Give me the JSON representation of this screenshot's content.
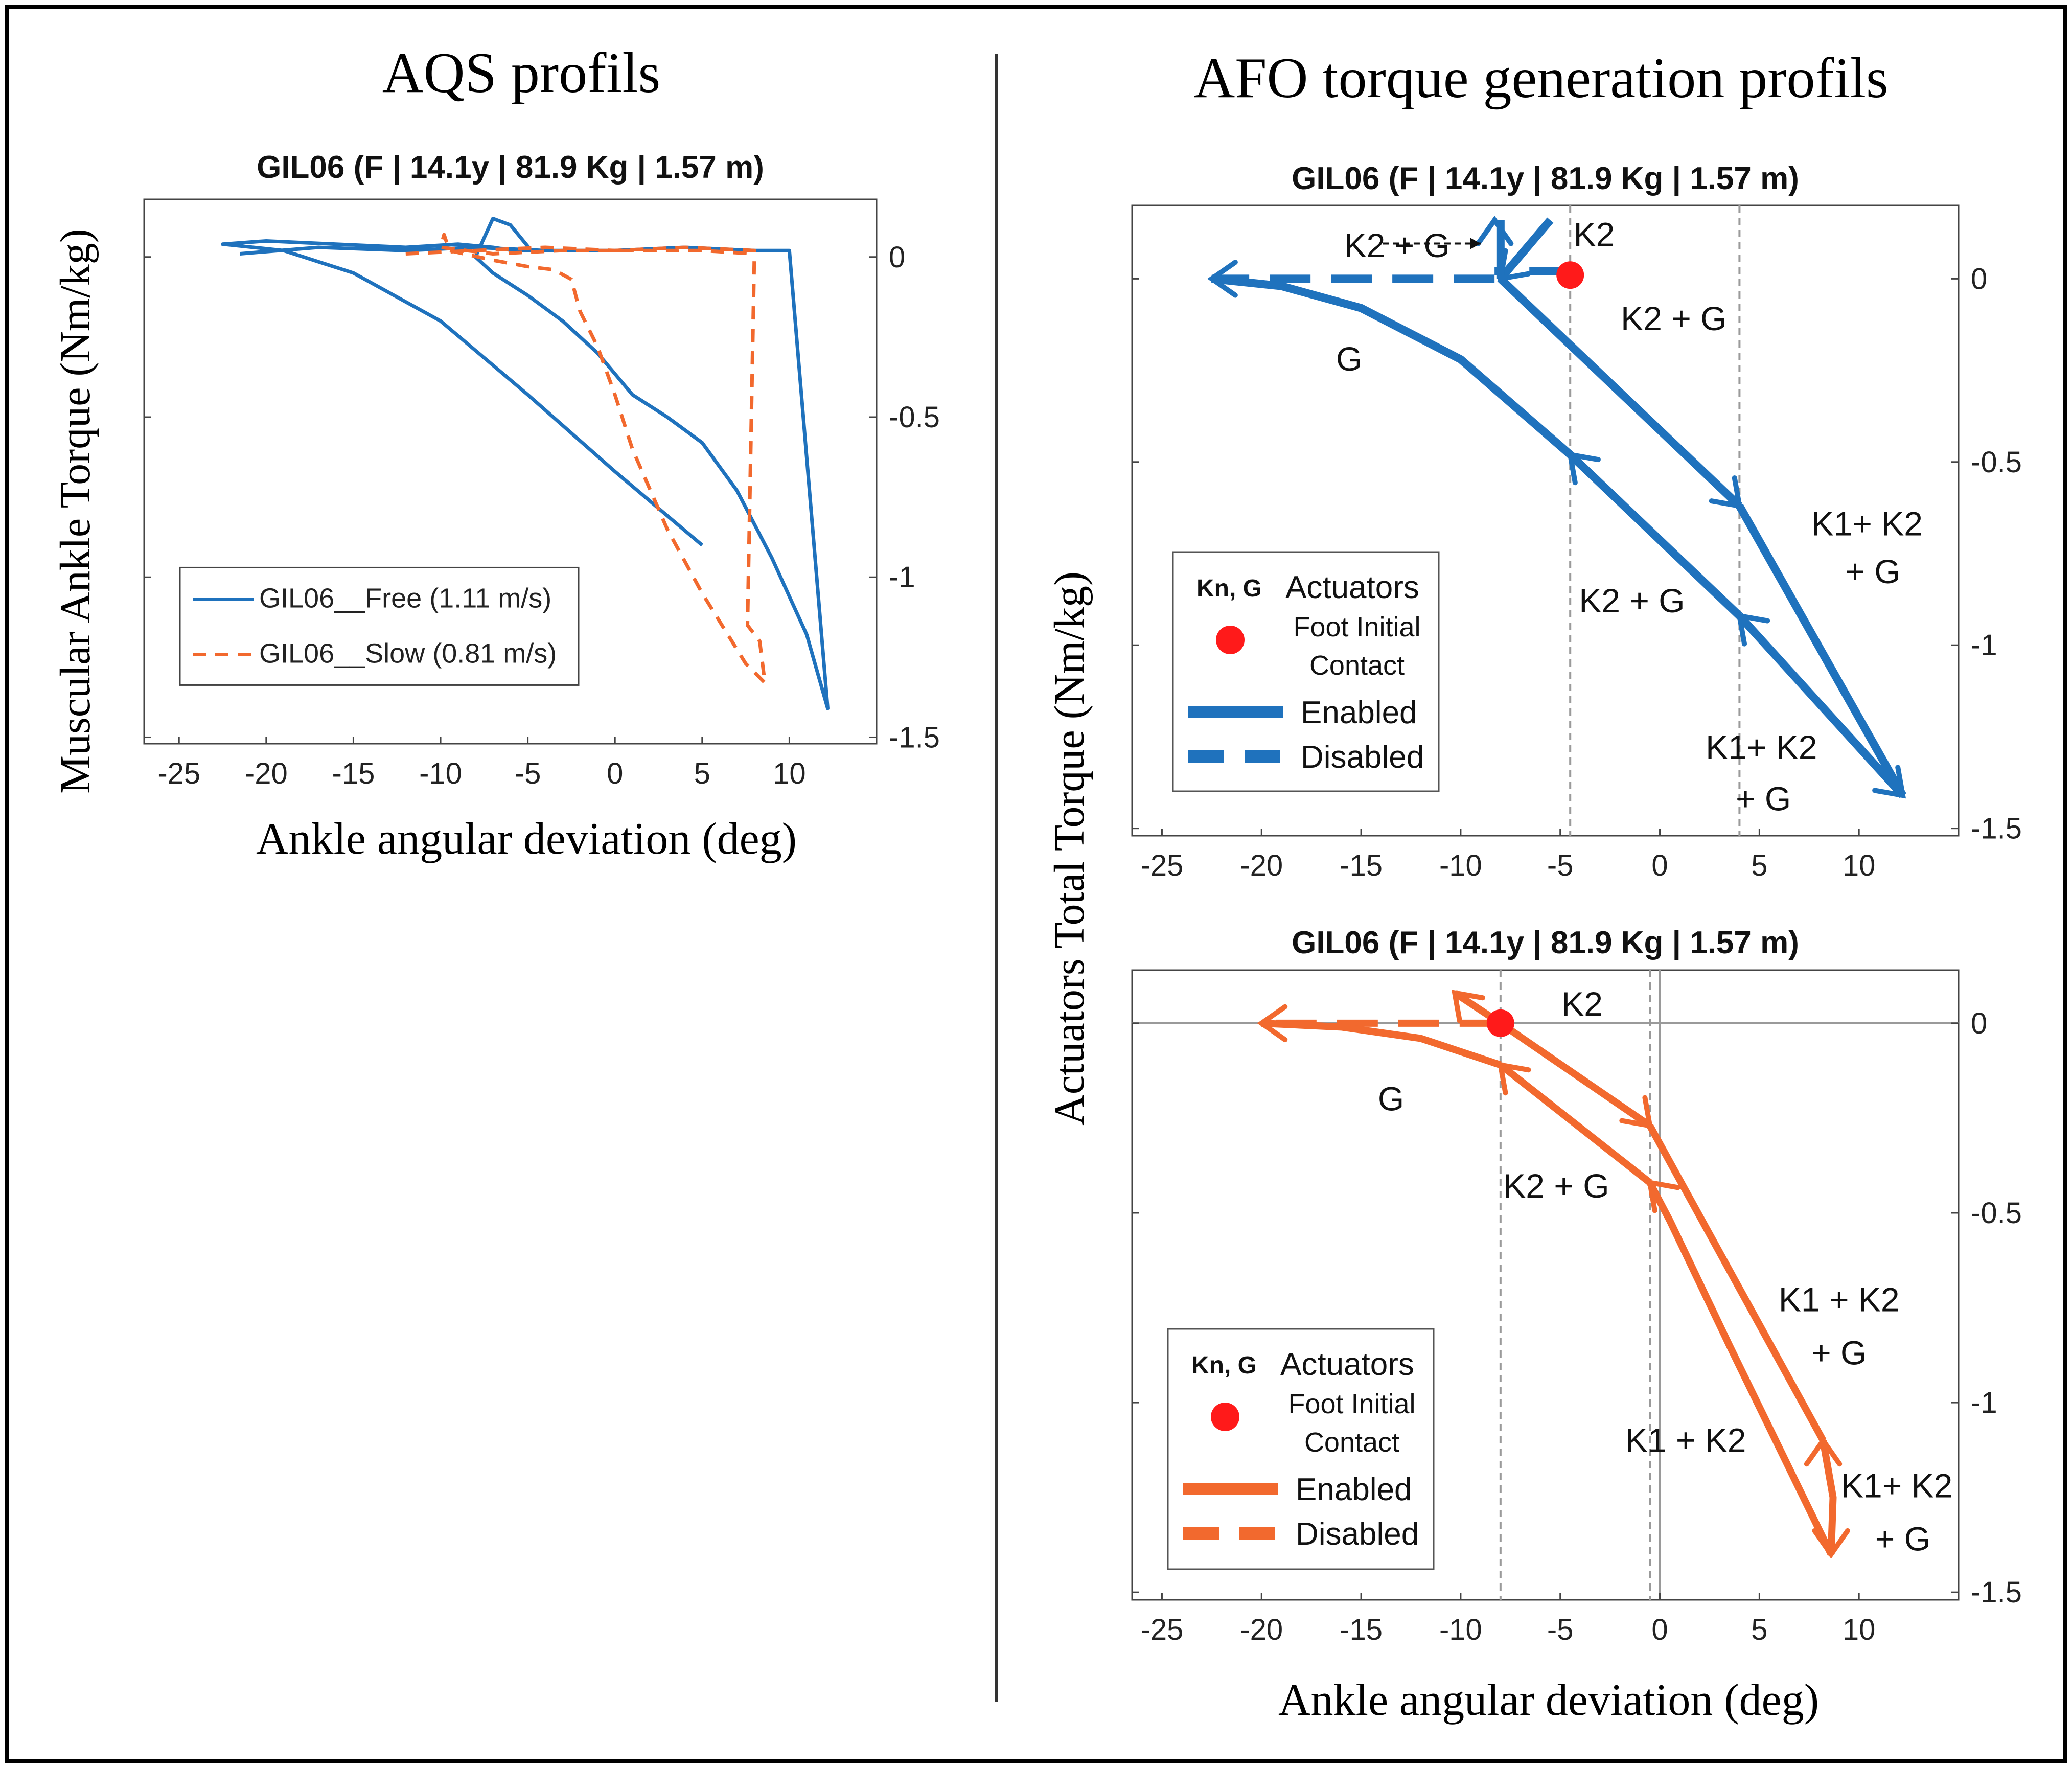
{
  "figure": {
    "left_heading": "AQS profils",
    "right_heading": "AFO torque generation profils",
    "left_ylabel": "Muscular Ankle Torque (Nm/kg)",
    "right_ylabel": "Actuators Total Torque (Nm/kg)",
    "xlabel": "Ankle angular deviation (deg)",
    "colors": {
      "blue": "#1f72bd",
      "orange": "#f2692e",
      "red": "#ff1a1a",
      "grey": "#9a9a9a",
      "border": "#000000"
    }
  },
  "chart_data": [
    {
      "id": "aqs",
      "type": "line",
      "title": "GIL06 (F | 14.1y | 81.9 Kg | 1.57 m)",
      "xlabel": "Ankle angular deviation (deg)",
      "ylabel": "Muscular Ankle Torque (Nm/kg)",
      "xlim": [
        -27,
        15
      ],
      "ylim": [
        -1.52,
        0.18
      ],
      "xticks": [
        -25,
        -20,
        -15,
        -10,
        -5,
        0,
        5,
        10
      ],
      "xtick_labels": [
        "-25",
        "-20",
        "-15",
        "-10",
        "-5",
        "0",
        "5",
        "10"
      ],
      "yticks": [
        0,
        -0.5,
        -1,
        -1.5
      ],
      "ytick_labels": [
        "0",
        "-0.5",
        "-1",
        "-1.5"
      ],
      "legend_position": "bottom-left",
      "series": [
        {
          "name": "GIL06__Free (1.11 m/s)",
          "color": "#1f72bd",
          "style": "solid",
          "x": [
            -21.5,
            -17,
            -12,
            -8,
            -4,
            0,
            4,
            8,
            10,
            12.2,
            11,
            9,
            7,
            5,
            3,
            1,
            -1,
            -3,
            -5,
            -7,
            -8,
            -7,
            -6,
            -4.8,
            -5.8,
            -7,
            -9,
            -12,
            -16,
            -20,
            -22.5,
            -19,
            -15,
            -10,
            -5,
            0,
            5
          ],
          "y": [
            0.01,
            0.03,
            0.02,
            0.03,
            0.02,
            0.02,
            0.03,
            0.02,
            0.02,
            -1.41,
            -1.18,
            -0.94,
            -0.73,
            -0.58,
            -0.5,
            -0.43,
            -0.3,
            -0.2,
            -0.12,
            -0.05,
            0.0,
            0.12,
            0.1,
            0.02,
            0.02,
            0.03,
            0.04,
            0.03,
            0.04,
            0.05,
            0.04,
            0.02,
            -0.05,
            -0.2,
            -0.43,
            -0.67,
            -0.9
          ]
        },
        {
          "name": "GIL06__Slow (0.81 m/s)",
          "color": "#f2692e",
          "style": "dashed",
          "x": [
            -12,
            -8,
            -4,
            0,
            4,
            8,
            7.6,
            8.3,
            8.6,
            7.5,
            5,
            3,
            1,
            0,
            -1,
            -2,
            -2.5,
            -3.5,
            -5,
            -7,
            -9.5,
            -9.8,
            -10,
            -7,
            -3,
            1,
            5,
            8
          ],
          "y": [
            0.01,
            0.02,
            0.03,
            0.02,
            0.03,
            0.02,
            -1.15,
            -1.2,
            -1.33,
            -1.27,
            -1.05,
            -0.85,
            -0.6,
            -0.43,
            -0.28,
            -0.17,
            -0.07,
            -0.04,
            -0.03,
            -0.01,
            0.02,
            0.07,
            0.03,
            0.01,
            0.02,
            0.02,
            0.02,
            0.01
          ]
        }
      ]
    },
    {
      "id": "afo-blue",
      "type": "line",
      "title": "GIL06 (F | 14.1y | 81.9 Kg | 1.57 m)",
      "xlabel": "",
      "ylabel": "Actuators Total Torque (Nm/kg)",
      "xlim": [
        -26.5,
        15
      ],
      "ylim": [
        -1.52,
        0.2
      ],
      "xticks": [
        -25,
        -20,
        -15,
        -10,
        -5,
        0,
        5,
        10
      ],
      "xtick_labels": [
        "-25",
        "-20",
        "-15",
        "-10",
        "-5",
        "0",
        "5",
        "10"
      ],
      "yticks": [
        0,
        -0.5,
        -1,
        -1.5
      ],
      "ytick_labels": [
        "0",
        "-0.5",
        "-1",
        "-1.5"
      ],
      "vlines": [
        -4.5,
        4
      ],
      "foot_contact": {
        "x": -4.5,
        "y": 0.01
      },
      "segments": [
        {
          "x": [
            -4.5,
            -8.3
          ],
          "y": [
            0.02,
            0.02
          ],
          "style": "dashed"
        },
        {
          "x": [
            -8.3,
            -22.5
          ],
          "y": [
            0.0,
            0.0
          ],
          "style": "dashed"
        },
        {
          "x": [
            -8,
            -5.5
          ],
          "y": [
            0.0,
            0.16
          ],
          "style": "solid"
        },
        {
          "x": [
            -8,
            -8
          ],
          "y": [
            0.0,
            0.16
          ],
          "style": "solid"
        },
        {
          "x": [
            -8,
            4
          ],
          "y": [
            0.0,
            -0.62
          ],
          "style": "solid"
        },
        {
          "x": [
            4,
            12.2
          ],
          "y": [
            -0.62,
            -1.41
          ],
          "style": "solid"
        },
        {
          "x": [
            12.2,
            4
          ],
          "y": [
            -1.41,
            -0.92
          ],
          "style": "solid"
        },
        {
          "x": [
            4,
            -4.5
          ],
          "y": [
            -0.92,
            -0.48
          ],
          "style": "solid"
        },
        {
          "x": [
            -4.5,
            -10,
            -15,
            -19,
            -22.5
          ],
          "y": [
            -0.48,
            -0.22,
            -0.08,
            -0.02,
            0.0
          ],
          "style": "solid"
        }
      ],
      "arrows": [
        {
          "x": -22.5,
          "y": 0.0,
          "dir": "left"
        },
        {
          "x": -8.3,
          "y": 0.16,
          "dir": "up"
        },
        {
          "x": -8.0,
          "y": 0.0,
          "dir": "down-left"
        },
        {
          "x": 4.0,
          "y": -0.62,
          "dir": "down-right"
        },
        {
          "x": 12.2,
          "y": -1.41,
          "dir": "down-right"
        },
        {
          "x": 4.0,
          "y": -0.92,
          "dir": "up-left"
        },
        {
          "x": -4.5,
          "y": -0.48,
          "dir": "up-left"
        }
      ],
      "annotations": [
        {
          "text": "K2",
          "x": -3.3,
          "y": 0.12
        },
        {
          "text": "K2 + G",
          "x": -13.2,
          "y": 0.09
        },
        {
          "text": "K2 + G",
          "x": 0.7,
          "y": -0.11
        },
        {
          "text": "G",
          "x": -15.6,
          "y": -0.22
        },
        {
          "text": "K1+ K2",
          "x": 10.4,
          "y": -0.67
        },
        {
          "text": "+ G",
          "x": 10.7,
          "y": -0.8
        },
        {
          "text": "K2 + G",
          "x": -1.4,
          "y": -0.88
        },
        {
          "text": "K1+ K2",
          "x": 5.1,
          "y": -1.28
        },
        {
          "text": "+ G",
          "x": 5.2,
          "y": -1.42
        }
      ],
      "legend": {
        "header_symbol": "Kn, G",
        "header_label": "Actuators",
        "foot_label_line1": "Foot Initial",
        "foot_label_line2": "Contact",
        "enabled": "Enabled",
        "disabled": "Disabled"
      }
    },
    {
      "id": "afo-orange",
      "type": "line",
      "title": "GIL06 (F | 14.1y | 81.9 Kg | 1.57 m)",
      "xlabel": "Ankle angular deviation (deg)",
      "ylabel": "",
      "xlim": [
        -26.5,
        15
      ],
      "ylim": [
        -1.52,
        0.14
      ],
      "xticks": [
        -25,
        -20,
        -15,
        -10,
        -5,
        0,
        5,
        10
      ],
      "xtick_labels": [
        "-25",
        "-20",
        "-15",
        "-10",
        "-5",
        "0",
        "5",
        "10"
      ],
      "yticks": [
        0,
        -0.5,
        -1,
        -1.5
      ],
      "ytick_labels": [
        "0",
        "-0.5",
        "-1",
        "-1.5"
      ],
      "vlines": [
        -8,
        -0.5
      ],
      "zero_lines": true,
      "foot_contact": {
        "x": -8,
        "y": 0.0
      },
      "segments": [
        {
          "x": [
            -8,
            -20
          ],
          "y": [
            0.0,
            0.0
          ],
          "style": "dashed"
        },
        {
          "x": [
            -8,
            -10.3
          ],
          "y": [
            0.0,
            0.08
          ],
          "style": "solid"
        },
        {
          "x": [
            -8,
            -0.5
          ],
          "y": [
            0.0,
            -0.27
          ],
          "style": "solid"
        },
        {
          "x": [
            -0.5,
            8.2
          ],
          "y": [
            -0.27,
            -1.1
          ],
          "style": "solid"
        },
        {
          "x": [
            8.2,
            8.7,
            8.6
          ],
          "y": [
            -1.1,
            -1.25,
            -1.4
          ],
          "style": "solid"
        },
        {
          "x": [
            8.6,
            3.5,
            0.5,
            -0.5
          ],
          "y": [
            -1.4,
            -0.85,
            -0.52,
            -0.42
          ],
          "style": "solid"
        },
        {
          "x": [
            -0.5,
            -8
          ],
          "y": [
            -0.42,
            -0.11
          ],
          "style": "solid"
        },
        {
          "x": [
            -8,
            -12,
            -16,
            -20
          ],
          "y": [
            -0.11,
            -0.04,
            -0.01,
            0.0
          ],
          "style": "solid"
        }
      ],
      "arrows": [
        {
          "x": -20,
          "y": 0.0,
          "dir": "left"
        },
        {
          "x": -10.3,
          "y": 0.08,
          "dir": "up-left"
        },
        {
          "x": -0.5,
          "y": -0.27,
          "dir": "down-right"
        },
        {
          "x": 8.2,
          "y": -1.1,
          "dir": "up"
        },
        {
          "x": 8.6,
          "y": -1.4,
          "dir": "down"
        },
        {
          "x": -0.5,
          "y": -0.42,
          "dir": "up-left"
        },
        {
          "x": -8,
          "y": -0.11,
          "dir": "up-left"
        }
      ],
      "annotations": [
        {
          "text": "K2",
          "x": -3.9,
          "y": 0.05
        },
        {
          "text": "G",
          "x": -13.5,
          "y": -0.2
        },
        {
          "text": "K2 + G",
          "x": -5.2,
          "y": -0.43
        },
        {
          "text": "K1 + K2",
          "x": 9.0,
          "y": -0.73
        },
        {
          "text": "+ G",
          "x": 9.0,
          "y": -0.87
        },
        {
          "text": "K1 + K2",
          "x": 1.3,
          "y": -1.1
        },
        {
          "text": "K1+ K2",
          "x": 11.9,
          "y": -1.22
        },
        {
          "text": "+ G",
          "x": 12.2,
          "y": -1.36
        }
      ],
      "legend": {
        "header_symbol": "Kn, G",
        "header_label": "Actuators",
        "foot_label_line1": "Foot Initial",
        "foot_label_line2": "Contact",
        "enabled": "Enabled",
        "disabled": "Disabled"
      }
    }
  ]
}
